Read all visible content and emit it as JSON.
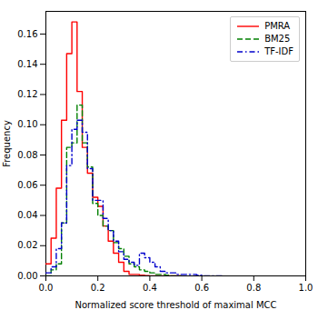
{
  "chart_data": {
    "type": "histogram",
    "xlabel": "Normalized score threshold of maximal MCC",
    "ylabel": "Frequency",
    "xlim": [
      0.0,
      1.0
    ],
    "ylim": [
      0.0,
      0.175
    ],
    "xticks": [
      {
        "value": 0.0,
        "label": "0.0"
      },
      0.2,
      0.4,
      0.6,
      0.8,
      {
        "value": 1.0,
        "label": "1.0"
      }
    ],
    "yticks": [
      {
        "value": 0.0,
        "label": "0.00"
      },
      0.02,
      0.04,
      0.06,
      0.08,
      {
        "value": 0.1,
        "label": "0.10"
      },
      0.12,
      0.14,
      0.16
    ],
    "grid": false,
    "legend": "upper right",
    "series": [
      {
        "name": "PMRA",
        "color": "#FF0000",
        "line_style": "solid",
        "bins": [
          0.0,
          0.02,
          0.04,
          0.06,
          0.08,
          0.1,
          0.12,
          0.14,
          0.16,
          0.18,
          0.2,
          0.22,
          0.24,
          0.26,
          0.28,
          0.3,
          0.32,
          0.34,
          0.36,
          0.38,
          0.4,
          0.42,
          0.44,
          0.46,
          0.48,
          0.5,
          0.52
        ],
        "values": [
          0.008,
          0.025,
          0.058,
          0.103,
          0.147,
          0.168,
          0.122,
          0.085,
          0.068,
          0.052,
          0.046,
          0.033,
          0.023,
          0.015,
          0.009,
          0.003,
          0.001,
          0.001,
          0.0005,
          0.0002,
          0.0,
          0.0,
          0.0,
          0.0,
          0.0,
          0.0
        ]
      },
      {
        "name": "BM25",
        "color": "#008000",
        "line_style": "dashed",
        "bins": [
          0.0,
          0.02,
          0.04,
          0.06,
          0.08,
          0.1,
          0.12,
          0.14,
          0.16,
          0.18,
          0.2,
          0.22,
          0.24,
          0.26,
          0.28,
          0.3,
          0.32,
          0.34,
          0.36,
          0.38,
          0.4,
          0.42,
          0.44,
          0.46,
          0.48,
          0.5,
          0.52
        ],
        "values": [
          0.0,
          0.004,
          0.008,
          0.035,
          0.085,
          0.088,
          0.113,
          0.088,
          0.072,
          0.048,
          0.04,
          0.033,
          0.03,
          0.022,
          0.018,
          0.013,
          0.008,
          0.006,
          0.004,
          0.003,
          0.002,
          0.001,
          0.001,
          0.0005,
          0.0,
          0.0
        ]
      },
      {
        "name": "TF-IDF",
        "color": "#0000CC",
        "line_style": "dashdot",
        "bins": [
          0.0,
          0.02,
          0.04,
          0.06,
          0.08,
          0.1,
          0.12,
          0.14,
          0.16,
          0.18,
          0.2,
          0.22,
          0.24,
          0.26,
          0.28,
          0.3,
          0.32,
          0.34,
          0.36,
          0.38,
          0.4,
          0.42,
          0.44,
          0.46,
          0.48,
          0.5,
          0.52,
          0.54,
          0.56,
          0.58,
          0.6,
          0.62,
          0.64,
          0.66,
          0.68
        ],
        "values": [
          0.002,
          0.006,
          0.018,
          0.035,
          0.073,
          0.097,
          0.103,
          0.095,
          0.071,
          0.05,
          0.05,
          0.038,
          0.03,
          0.023,
          0.016,
          0.011,
          0.009,
          0.007,
          0.015,
          0.012,
          0.009,
          0.006,
          0.003,
          0.002,
          0.002,
          0.001,
          0.001,
          0.001,
          0.001,
          0.0005,
          0.0,
          0.0,
          0.0,
          0.0
        ]
      }
    ]
  }
}
